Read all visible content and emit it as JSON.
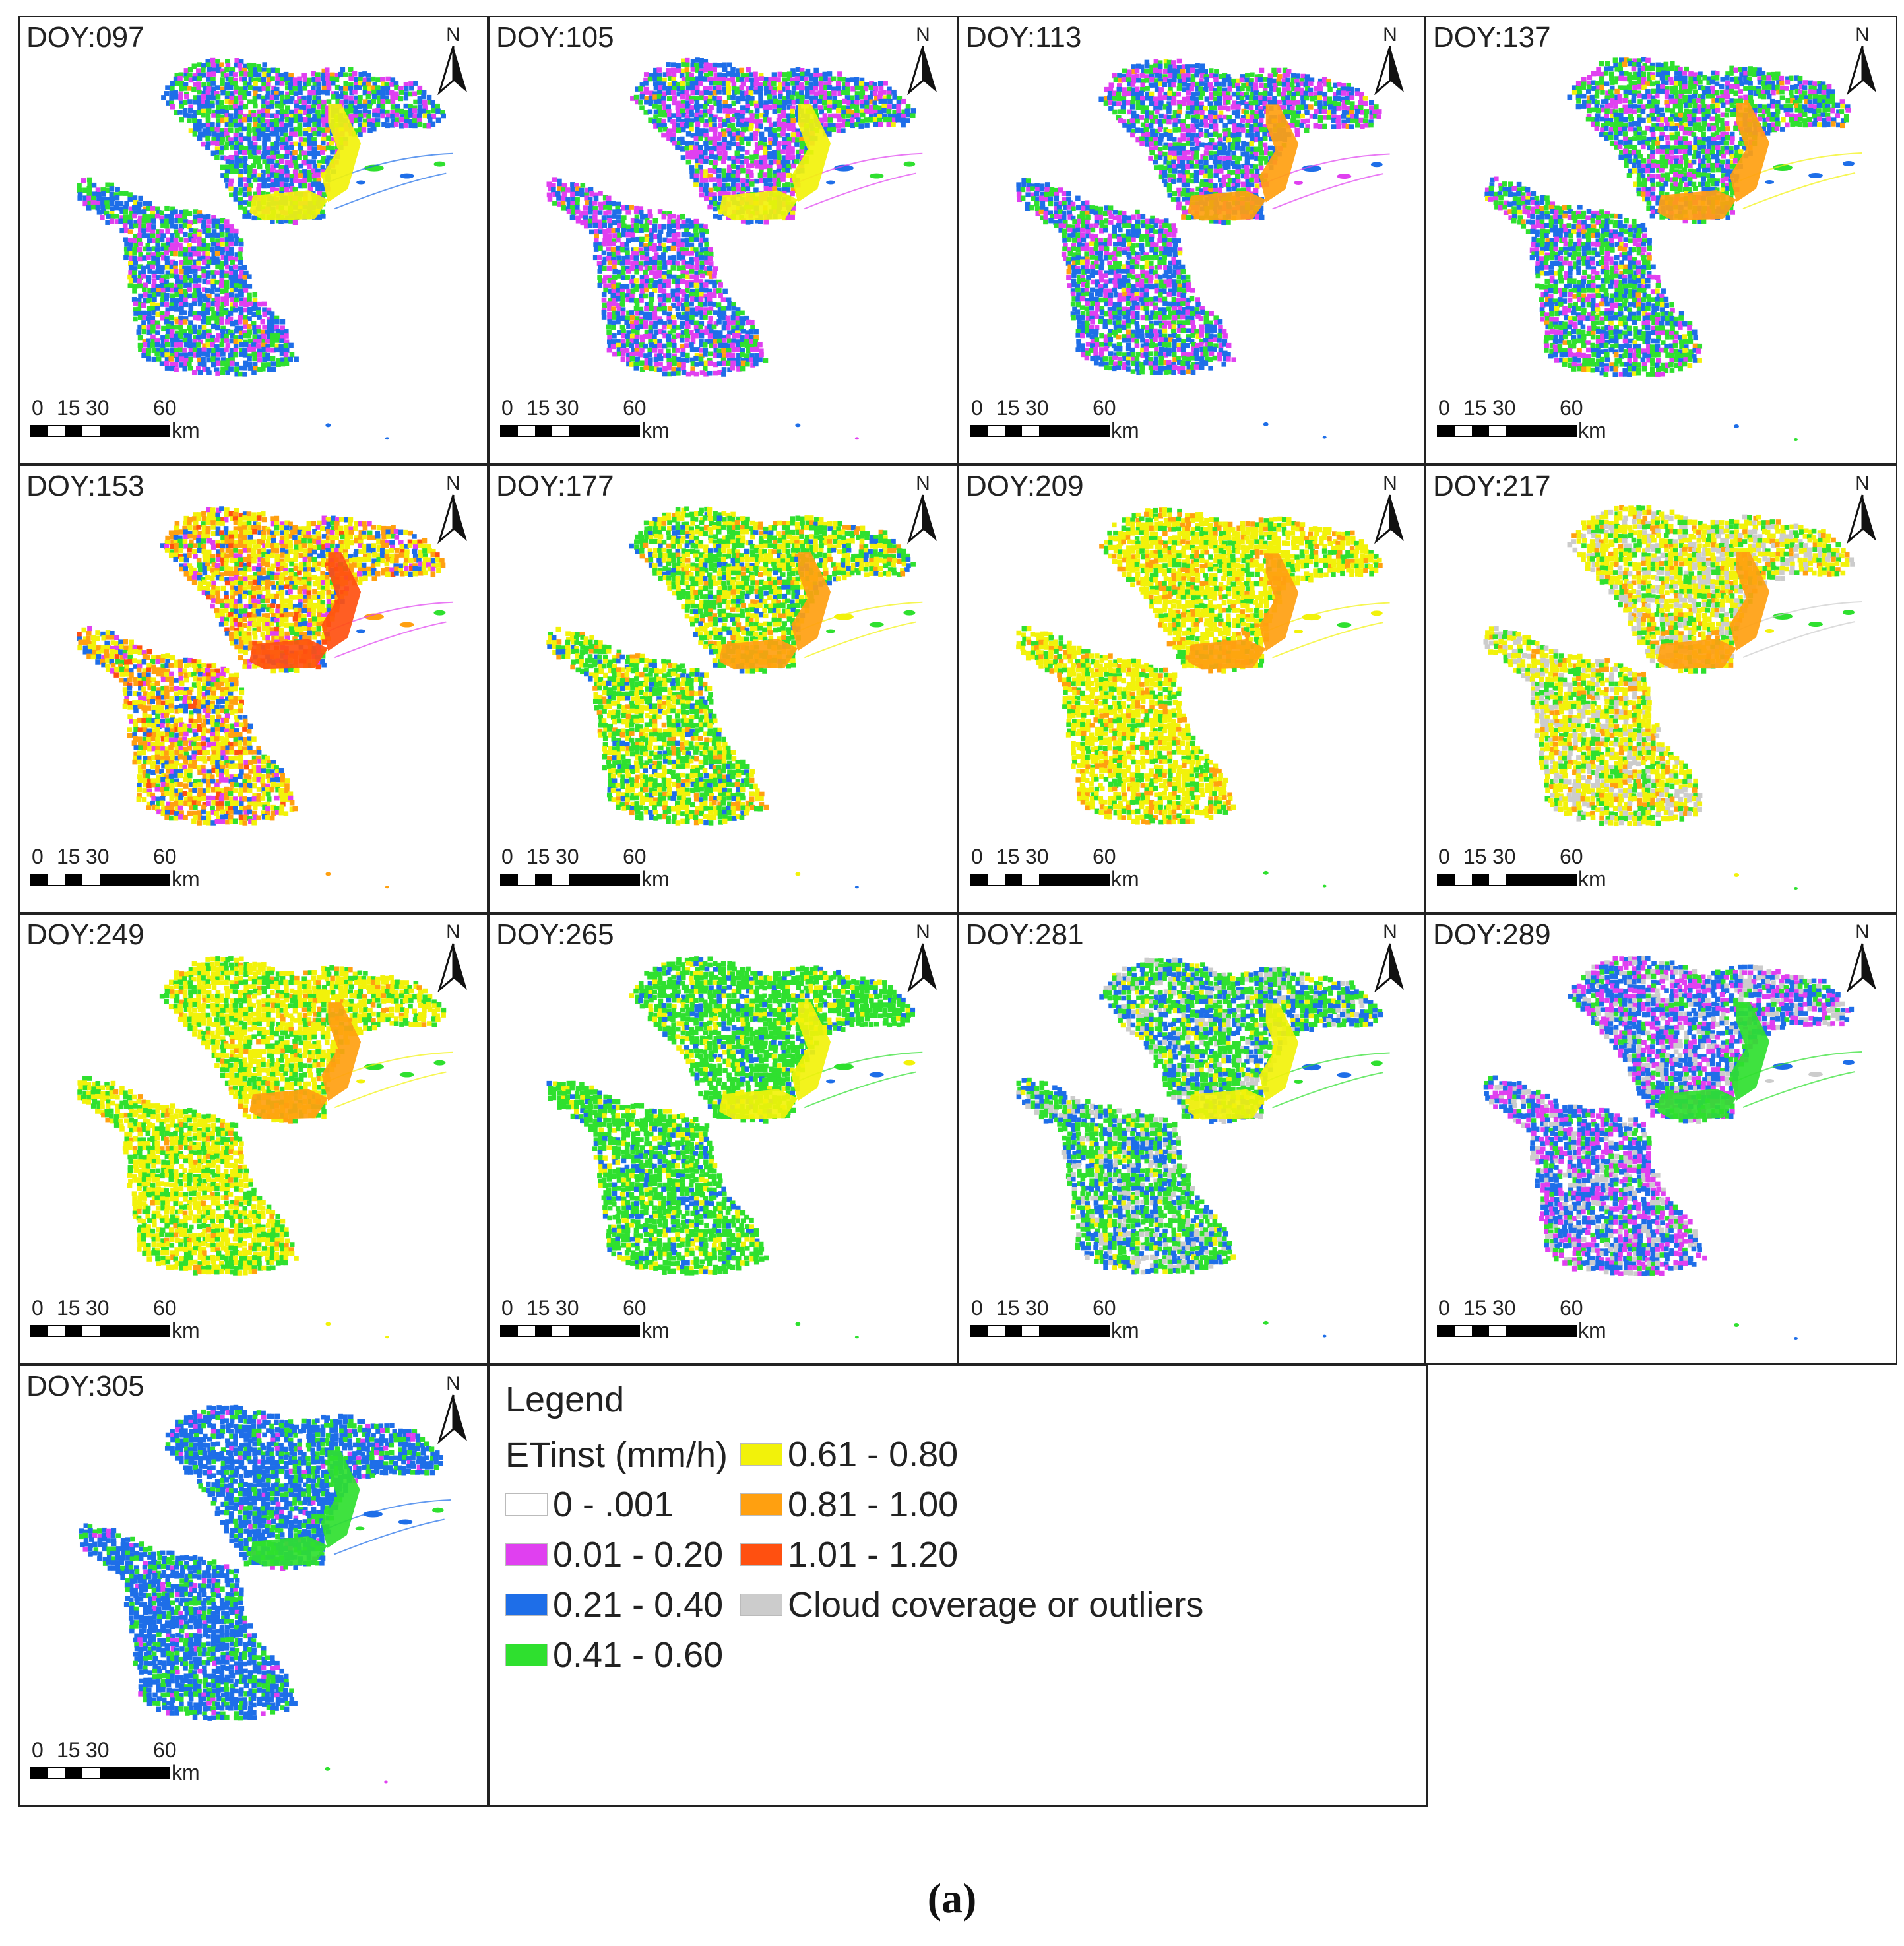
{
  "panels": [
    {
      "label": "DOY:097",
      "weights": {
        "magenta": 0.22,
        "blue": 0.42,
        "green": 0.3,
        "yellow": 0.03,
        "orange": 0.03
      },
      "river": "yellow"
    },
    {
      "label": "DOY:105",
      "weights": {
        "magenta": 0.32,
        "blue": 0.4,
        "green": 0.22,
        "yellow": 0.03,
        "orange": 0.03
      },
      "river": "yellow"
    },
    {
      "label": "DOY:113",
      "weights": {
        "magenta": 0.3,
        "blue": 0.38,
        "green": 0.28,
        "yellow": 0.02,
        "orange": 0.02
      },
      "river": "orange"
    },
    {
      "label": "DOY:137",
      "weights": {
        "magenta": 0.22,
        "blue": 0.34,
        "green": 0.38,
        "yellow": 0.03,
        "orange": 0.03
      },
      "river": "orange"
    },
    {
      "label": "DOY:153",
      "weights": {
        "magenta": 0.1,
        "blue": 0.14,
        "green": 0.06,
        "yellow": 0.38,
        "orange": 0.26,
        "red": 0.06
      },
      "river": "red"
    },
    {
      "label": "DOY:177",
      "weights": {
        "blue": 0.1,
        "green": 0.46,
        "yellow": 0.36,
        "orange": 0.08
      },
      "river": "orange"
    },
    {
      "label": "DOY:209",
      "weights": {
        "green": 0.24,
        "yellow": 0.62,
        "orange": 0.14
      },
      "river": "orange"
    },
    {
      "label": "DOY:217",
      "weights": {
        "green": 0.22,
        "yellow": 0.44,
        "orange": 0.1,
        "gray": 0.24
      },
      "river": "orange"
    },
    {
      "label": "DOY:249",
      "weights": {
        "green": 0.34,
        "yellow": 0.6,
        "orange": 0.06
      },
      "river": "orange"
    },
    {
      "label": "DOY:265",
      "weights": {
        "blue": 0.12,
        "green": 0.74,
        "yellow": 0.14
      },
      "river": "yellow"
    },
    {
      "label": "DOY:281",
      "weights": {
        "blue": 0.3,
        "green": 0.44,
        "yellow": 0.08,
        "gray": 0.18
      },
      "river": "yellow"
    },
    {
      "label": "DOY:289",
      "weights": {
        "magenta": 0.3,
        "blue": 0.38,
        "green": 0.12,
        "gray": 0.2
      },
      "river": "green"
    },
    {
      "label": "DOY:305",
      "weights": {
        "magenta": 0.05,
        "blue": 0.7,
        "green": 0.25
      },
      "river": "green"
    }
  ],
  "scale_bar": {
    "ticks": [
      "0",
      "15",
      "30",
      "60"
    ],
    "unit": "km"
  },
  "north_label": "N",
  "legend": {
    "title": "Legend",
    "subtitle": "ETinst (mm/h)",
    "items": [
      {
        "key": "white",
        "label": "0 - .001",
        "color": "#ffffff"
      },
      {
        "key": "magenta",
        "label": "0.01 - 0.20",
        "color": "#e040f0"
      },
      {
        "key": "blue",
        "label": "0.21 - 0.40",
        "color": "#1e6ee8"
      },
      {
        "key": "green",
        "label": "0.41 - 0.60",
        "color": "#2fe02f"
      },
      {
        "key": "yellow",
        "label": "0.61 - 0.80",
        "color": "#f2f20a"
      },
      {
        "key": "orange",
        "label": "0.81 - 1.00",
        "color": "#ffa010"
      },
      {
        "key": "red",
        "label": "1.01 - 1.20",
        "color": "#ff5010"
      },
      {
        "key": "gray",
        "label": "Cloud coverage or outliers",
        "color": "#cccccc"
      }
    ]
  },
  "caption": "(a)"
}
